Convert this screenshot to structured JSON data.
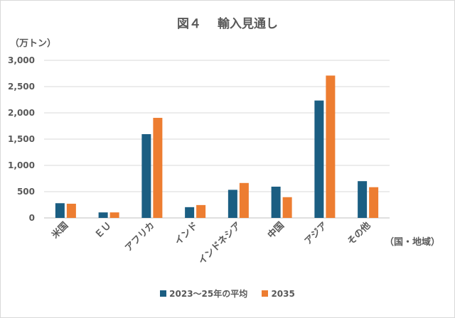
{
  "chart_data": {
    "type": "bar",
    "title": "図４　 輸入見通し",
    "ylabel": "（万トン）",
    "xlabel": "（国・地域）",
    "categories": [
      "米国",
      "ＥＵ",
      "アフリカ",
      "インド",
      "インドネシア",
      "中国",
      "アジア",
      "その他"
    ],
    "series": [
      {
        "name": "2023～25年の平均",
        "color": "#1b5e82",
        "values": [
          280,
          105,
          1595,
          205,
          535,
          595,
          2235,
          700
        ]
      },
      {
        "name": "2035",
        "color": "#ed7d31",
        "values": [
          270,
          105,
          1905,
          245,
          665,
          395,
          2710,
          585
        ]
      }
    ],
    "ylim": [
      0,
      3000
    ],
    "yticks": [
      0,
      500,
      1000,
      1500,
      2000,
      2500,
      3000
    ],
    "ytick_labels": [
      "0",
      "500",
      "1,000",
      "1,500",
      "2,000",
      "2,500",
      "3,000"
    ],
    "grid": true,
    "legend_position": "bottom"
  }
}
